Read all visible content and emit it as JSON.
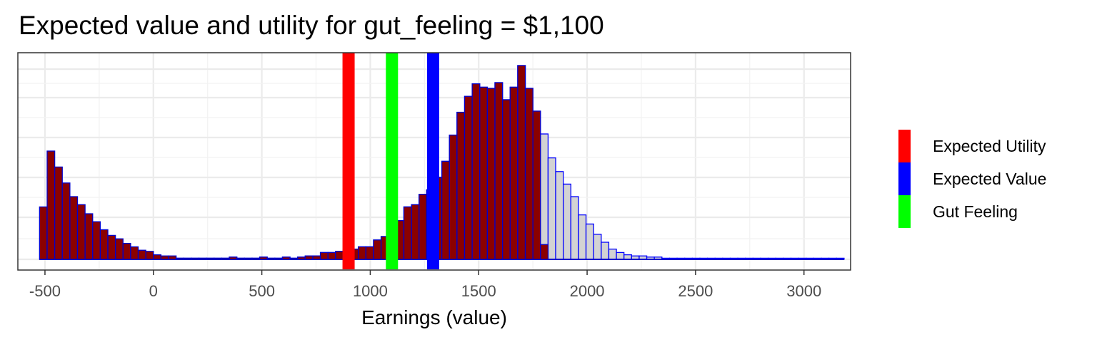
{
  "chart_data": {
    "type": "bar",
    "title": "Expected value and utility for gut_feeling = $1,100",
    "xlabel": "Earnings (value)",
    "ylabel": "",
    "xlim": [
      -625,
      3215
    ],
    "x_ticks": [
      -500,
      0,
      500,
      1000,
      1500,
      2000,
      2500,
      3000
    ],
    "x_tick_labels": [
      "-500",
      "0",
      "500",
      "1000",
      "1500",
      "2000",
      "2500",
      "3000"
    ],
    "y_ticks_shown": false,
    "grid": true,
    "legend_position": "right",
    "bin_start": -525,
    "bin_width": 35,
    "series": [
      {
        "name": "",
        "color": "#8b0000",
        "counts": [
          46,
          95,
          81,
          67,
          55,
          48,
          40,
          33,
          26,
          21,
          18,
          14,
          11,
          8,
          7,
          4,
          3,
          3,
          1,
          1,
          1,
          1,
          1,
          1,
          1,
          2,
          1,
          1,
          1,
          2,
          1,
          1,
          2,
          1,
          2,
          3,
          3,
          6,
          6,
          7,
          8,
          9,
          11,
          11,
          17,
          20,
          25,
          34,
          46,
          48,
          57,
          61,
          72,
          86,
          109,
          129,
          143,
          154,
          151,
          150,
          155,
          140,
          151,
          170,
          150,
          130,
          13,
          0,
          0,
          0,
          0,
          0,
          0,
          0,
          0,
          0,
          0,
          0,
          0,
          0,
          0,
          0,
          0,
          0,
          0,
          0,
          0,
          0,
          0,
          0,
          0,
          0,
          0,
          0,
          0,
          0,
          0,
          0,
          0,
          0,
          0,
          0,
          0,
          0,
          0,
          0
        ]
      },
      {
        "name": "",
        "color": "#d3d3d3",
        "counts": [
          0,
          0,
          0,
          0,
          0,
          0,
          0,
          0,
          0,
          0,
          0,
          0,
          0,
          0,
          0,
          0,
          1,
          1,
          1,
          1,
          1,
          1,
          1,
          1,
          1,
          2,
          1,
          1,
          1,
          2,
          1,
          1,
          2,
          1,
          2,
          3,
          3,
          6,
          6,
          7,
          8,
          9,
          11,
          11,
          17,
          20,
          25,
          34,
          46,
          48,
          57,
          61,
          72,
          86,
          109,
          129,
          143,
          154,
          151,
          150,
          155,
          140,
          151,
          170,
          150,
          130,
          110,
          89,
          77,
          66,
          55,
          39,
          31,
          22,
          15,
          9,
          6,
          4,
          3,
          3,
          2,
          2,
          1,
          1,
          1,
          1,
          1,
          1,
          1,
          1,
          1,
          1,
          1,
          1,
          1,
          1,
          1,
          1,
          1,
          1,
          1,
          1,
          1,
          1,
          1,
          1
        ]
      }
    ],
    "vlines": [
      {
        "name": "Expected Utility",
        "x": 900,
        "color": "#ff0000"
      },
      {
        "name": "Gut Feeling",
        "x": 1100,
        "color": "#00ff00"
      },
      {
        "name": "Expected Value",
        "x": 1290,
        "color": "#0000ff"
      }
    ],
    "legend": [
      {
        "label": "Expected Utility",
        "color": "#ff0000"
      },
      {
        "label": "Expected Value",
        "color": "#0000ff"
      },
      {
        "label": "Gut Feeling",
        "color": "#00ff00"
      }
    ]
  }
}
